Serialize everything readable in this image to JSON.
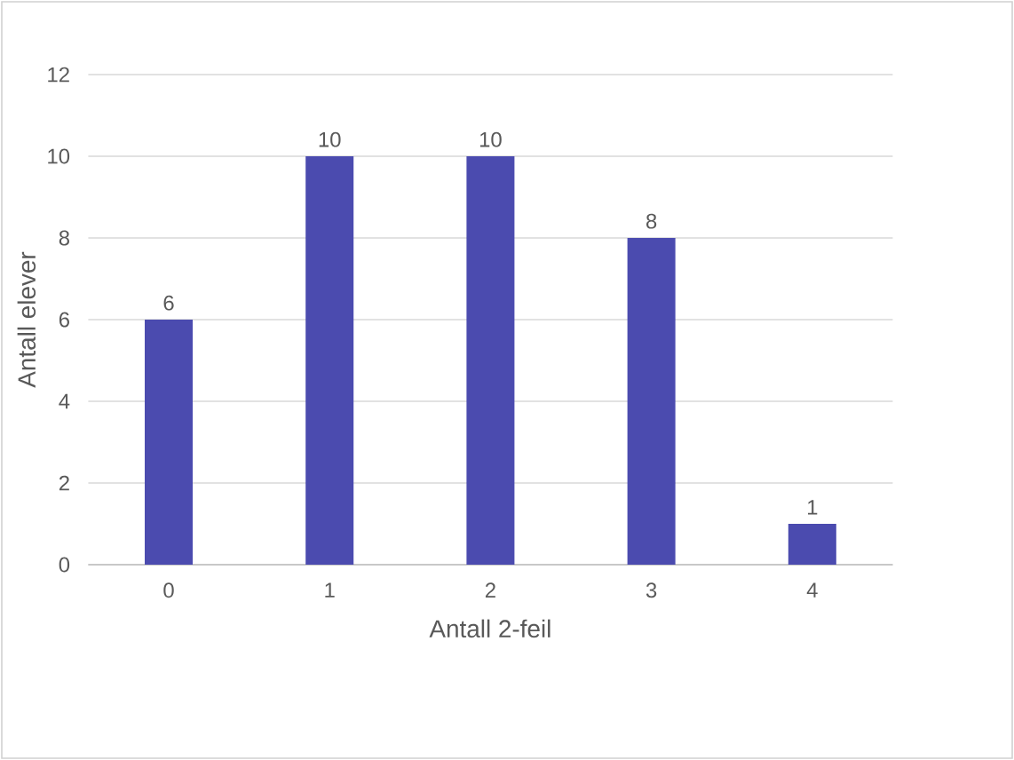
{
  "chart_data": {
    "type": "bar",
    "categories": [
      "0",
      "1",
      "2",
      "3",
      "4"
    ],
    "values": [
      6,
      10,
      10,
      8,
      1
    ],
    "color": "#4b4baf",
    "xlabel": "Antall 2-feil",
    "ylabel": "Antall elever",
    "ylim": [
      0,
      12
    ],
    "yticks": [
      0,
      2,
      4,
      6,
      8,
      10,
      12
    ],
    "grid": "y",
    "data_labels": true
  }
}
